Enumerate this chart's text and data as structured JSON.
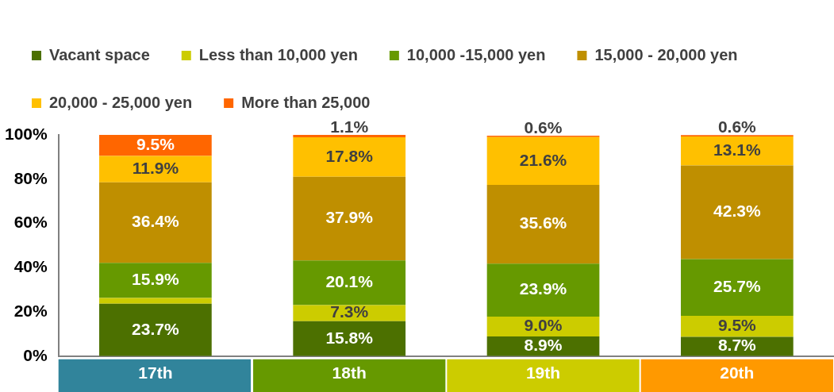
{
  "chart_data": {
    "type": "bar",
    "stacked": true,
    "categories": [
      "17th",
      "18th",
      "19th",
      "20th"
    ],
    "ylim": [
      0,
      100
    ],
    "yticks": [
      {
        "value": 0,
        "label": "0%"
      },
      {
        "value": 20,
        "label": "20%"
      },
      {
        "value": 40,
        "label": "40%"
      },
      {
        "value": 60,
        "label": "60%"
      },
      {
        "value": 80,
        "label": "80%"
      },
      {
        "value": 100,
        "label": "100%"
      }
    ],
    "grid": false,
    "legend": "top",
    "series": [
      {
        "name": "Vacant space",
        "color": "#4c7000",
        "values": [
          23.7,
          15.8,
          8.9,
          8.7
        ],
        "value_labels": [
          "23.7%",
          "15.8%",
          "8.9%",
          "8.7%"
        ]
      },
      {
        "name": "Less than 10,000 yen",
        "color": "#cccc00",
        "values": [
          2.6,
          7.3,
          9.0,
          9.5
        ],
        "value_labels": [
          null,
          "7.3%",
          "9.0%",
          "9.5%"
        ]
      },
      {
        "name": "10,000 -15,000 yen",
        "color": "#669900",
        "values": [
          15.9,
          20.1,
          23.9,
          25.7
        ],
        "value_labels": [
          "15.9%",
          "20.1%",
          "23.9%",
          "25.7%"
        ]
      },
      {
        "name": "15,000 - 20,000 yen",
        "color": "#bf8f00",
        "values": [
          36.4,
          37.9,
          35.6,
          42.3
        ],
        "value_labels": [
          "36.4%",
          "37.9%",
          "35.6%",
          "42.3%"
        ]
      },
      {
        "name": "20,000 - 25,000 yen",
        "color": "#ffc000",
        "values": [
          11.9,
          17.8,
          21.6,
          13.1
        ],
        "value_labels": [
          "11.9%",
          "17.8%",
          "21.6%",
          "13.1%"
        ]
      },
      {
        "name": "More than 25,000",
        "color": "#ff6600",
        "values": [
          9.5,
          1.1,
          0.6,
          0.6
        ],
        "value_labels": [
          "9.5%",
          "1.1%",
          "0.6%",
          "0.6%"
        ]
      }
    ]
  }
}
